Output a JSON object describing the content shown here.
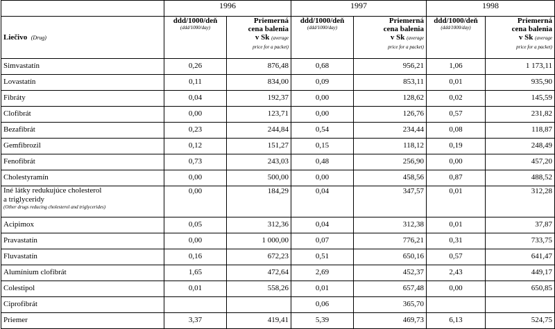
{
  "years": [
    "1996",
    "1997",
    "1998"
  ],
  "headers": {
    "drug_label": "Liečivo",
    "drug_sub": "(Drug)",
    "ddd_label": "ddd/1000/deň",
    "ddd_sub": "(ddd/1000/day)",
    "price_label_line1": "Priemerná",
    "price_label_line2": "cena balenia",
    "price_label_line3": "v Sk",
    "price_sub_inline": "(average",
    "price_sub_rest": "price for a packet)"
  },
  "rows": [
    {
      "name": "Simvastatín",
      "v": [
        "0,26",
        "876,48",
        "0,68",
        "956,21",
        "1,06",
        "1 173,11"
      ]
    },
    {
      "name": "Lovastatín",
      "v": [
        "0,11",
        "834,00",
        "0,09",
        "853,11",
        "0,01",
        "935,90"
      ]
    },
    {
      "name": "Fibráty",
      "v": [
        "0,04",
        "192,37",
        "0,00",
        "128,62",
        "0,02",
        "145,59"
      ]
    },
    {
      "name": "Clofibrát",
      "v": [
        "0,00",
        "123,71",
        "0,00",
        "126,76",
        "0,57",
        "231,82"
      ]
    },
    {
      "name": "Bezafibrát",
      "v": [
        "0,23",
        "244,84",
        "0,54",
        "234,44",
        "0,08",
        "118,87"
      ]
    },
    {
      "name": "Gemfibrozil",
      "v": [
        "0,12",
        "151,27",
        "0,15",
        "118,12",
        "0,19",
        "248,49"
      ]
    },
    {
      "name": "Fenofibrát",
      "v": [
        "0,73",
        "243,03",
        "0,48",
        "256,90",
        "0,00",
        "457,20"
      ]
    },
    {
      "name": "Cholestyramín",
      "v": [
        "0,00",
        "500,00",
        "0,00",
        "458,56",
        "0,87",
        "488,52"
      ]
    },
    {
      "name": "Iné látky redukujúce cholesterol",
      "name2": "a triglyceridy",
      "sub": "(Other drugs reducing cholesterol and triglycerides)",
      "v": [
        "0,00",
        "184,29",
        "0,04",
        "347,57",
        "0,01",
        "312,28"
      ]
    },
    {
      "name": "Acipimox",
      "v": [
        "0,05",
        "312,36",
        "0,04",
        "312,38",
        "0,01",
        "37,87"
      ]
    },
    {
      "name": "Pravastatín",
      "v": [
        "0,00",
        "1 000,00",
        "0,07",
        "776,21",
        "0,31",
        "733,75"
      ]
    },
    {
      "name": "Fluvastatín",
      "v": [
        "0,16",
        "672,23",
        "0,51",
        "650,16",
        "0,57",
        "641,47"
      ]
    },
    {
      "name": "Alumínium clofibrát",
      "v": [
        "1,65",
        "472,64",
        "2,69",
        "452,37",
        "2,43",
        "449,17"
      ]
    },
    {
      "name": "Colestipol",
      "v": [
        "0,01",
        "558,26",
        "0,01",
        "657,48",
        "0,00",
        "650,85"
      ]
    },
    {
      "name": "Ciprofibrát",
      "v": [
        "",
        "",
        "0,06",
        "365,70",
        "",
        ""
      ]
    },
    {
      "name": "Priemer",
      "v": [
        "3,37",
        "419,41",
        "5,39",
        "469,73",
        "6,13",
        "524,75"
      ]
    }
  ]
}
